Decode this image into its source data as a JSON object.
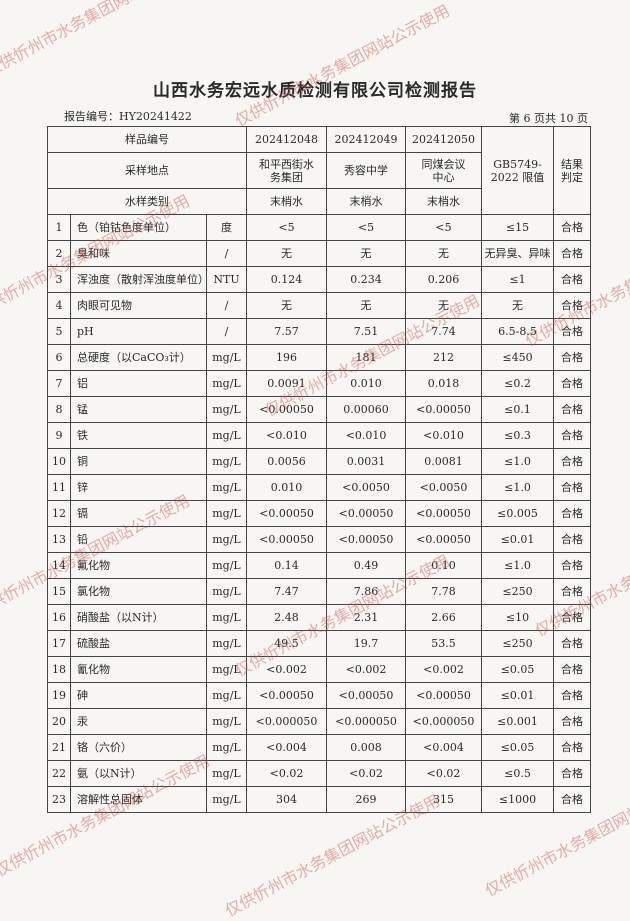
{
  "title": "山西水务宏远水质检测有限公司检测报告",
  "report_no": "报告编号：HY20241422",
  "page_info": "第 6 页共 10 页",
  "watermark": "仅供忻州市水务集团网站公示使用",
  "header": {
    "sample_no_label": "样品编号",
    "location_label": "采样地点",
    "type_label": "水样类别",
    "sample_nos": [
      "202412048",
      "202412049",
      "202412050"
    ],
    "locations": [
      "和平西街水务集团",
      "秀容中学",
      "同煤会议中心"
    ],
    "types": [
      "末梢水",
      "末梢水",
      "末梢水"
    ],
    "limit_label": "GB5749-2022 限值",
    "result_label": "结果判定"
  },
  "rows": [
    {
      "no": "1",
      "item": "色（铂钴色度单位）",
      "unit": "度",
      "v": [
        "<5",
        "<5",
        "<5"
      ],
      "limit": "≤15",
      "result": "合格"
    },
    {
      "no": "2",
      "item": "臭和味",
      "unit": "/",
      "v": [
        "无",
        "无",
        "无"
      ],
      "limit": "无异臭、异味",
      "result": "合格"
    },
    {
      "no": "3",
      "item": "浑浊度（散射浑浊度单位）",
      "unit": "NTU",
      "v": [
        "0.124",
        "0.234",
        "0.206"
      ],
      "limit": "≤1",
      "result": "合格"
    },
    {
      "no": "4",
      "item": "肉眼可见物",
      "unit": "/",
      "v": [
        "无",
        "无",
        "无"
      ],
      "limit": "无",
      "result": "合格"
    },
    {
      "no": "5",
      "item": "pH",
      "unit": "/",
      "v": [
        "7.57",
        "7.51",
        "7.74"
      ],
      "limit": "6.5-8.5",
      "result": "合格"
    },
    {
      "no": "6",
      "item": "总硬度（以CaCO₃计）",
      "unit": "mg/L",
      "v": [
        "196",
        "181",
        "212"
      ],
      "limit": "≤450",
      "result": "合格"
    },
    {
      "no": "7",
      "item": "铝",
      "unit": "mg/L",
      "v": [
        "0.0091",
        "0.010",
        "0.018"
      ],
      "limit": "≤0.2",
      "result": "合格"
    },
    {
      "no": "8",
      "item": "锰",
      "unit": "mg/L",
      "v": [
        "<0.00050",
        "0.00060",
        "<0.00050"
      ],
      "limit": "≤0.1",
      "result": "合格"
    },
    {
      "no": "9",
      "item": "铁",
      "unit": "mg/L",
      "v": [
        "<0.010",
        "<0.010",
        "<0.010"
      ],
      "limit": "≤0.3",
      "result": "合格"
    },
    {
      "no": "10",
      "item": "铜",
      "unit": "mg/L",
      "v": [
        "0.0056",
        "0.0031",
        "0.0081"
      ],
      "limit": "≤1.0",
      "result": "合格"
    },
    {
      "no": "11",
      "item": "锌",
      "unit": "mg/L",
      "v": [
        "0.010",
        "<0.0050",
        "<0.0050"
      ],
      "limit": "≤1.0",
      "result": "合格"
    },
    {
      "no": "12",
      "item": "镉",
      "unit": "mg/L",
      "v": [
        "<0.00050",
        "<0.00050",
        "<0.00050"
      ],
      "limit": "≤0.005",
      "result": "合格"
    },
    {
      "no": "13",
      "item": "铅",
      "unit": "mg/L",
      "v": [
        "<0.00050",
        "<0.00050",
        "<0.00050"
      ],
      "limit": "≤0.01",
      "result": "合格"
    },
    {
      "no": "14",
      "item": "氟化物",
      "unit": "mg/L",
      "v": [
        "0.14",
        "0.49",
        "0.10"
      ],
      "limit": "≤1.0",
      "result": "合格"
    },
    {
      "no": "15",
      "item": "氯化物",
      "unit": "mg/L",
      "v": [
        "7.47",
        "7.86",
        "7.78"
      ],
      "limit": "≤250",
      "result": "合格"
    },
    {
      "no": "16",
      "item": "硝酸盐（以N计）",
      "unit": "mg/L",
      "v": [
        "2.48",
        "2.31",
        "2.66"
      ],
      "limit": "≤10",
      "result": "合格"
    },
    {
      "no": "17",
      "item": "硫酸盐",
      "unit": "mg/L",
      "v": [
        "49.5",
        "19.7",
        "53.5"
      ],
      "limit": "≤250",
      "result": "合格"
    },
    {
      "no": "18",
      "item": "氰化物",
      "unit": "mg/L",
      "v": [
        "<0.002",
        "<0.002",
        "<0.002"
      ],
      "limit": "≤0.05",
      "result": "合格"
    },
    {
      "no": "19",
      "item": "砷",
      "unit": "mg/L",
      "v": [
        "<0.00050",
        "<0.00050",
        "<0.00050"
      ],
      "limit": "≤0.01",
      "result": "合格"
    },
    {
      "no": "20",
      "item": "汞",
      "unit": "mg/L",
      "v": [
        "<0.000050",
        "<0.000050",
        "<0.000050"
      ],
      "limit": "≤0.001",
      "result": "合格"
    },
    {
      "no": "21",
      "item": "铬（六价）",
      "unit": "mg/L",
      "v": [
        "<0.004",
        "0.008",
        "<0.004"
      ],
      "limit": "≤0.05",
      "result": "合格"
    },
    {
      "no": "22",
      "item": "氨（以N计）",
      "unit": "mg/L",
      "v": [
        "<0.02",
        "<0.02",
        "<0.02"
      ],
      "limit": "≤0.5",
      "result": "合格"
    },
    {
      "no": "23",
      "item": "溶解性总固体",
      "unit": "mg/L",
      "v": [
        "304",
        "269",
        "315"
      ],
      "limit": "≤1000",
      "result": "合格"
    }
  ]
}
